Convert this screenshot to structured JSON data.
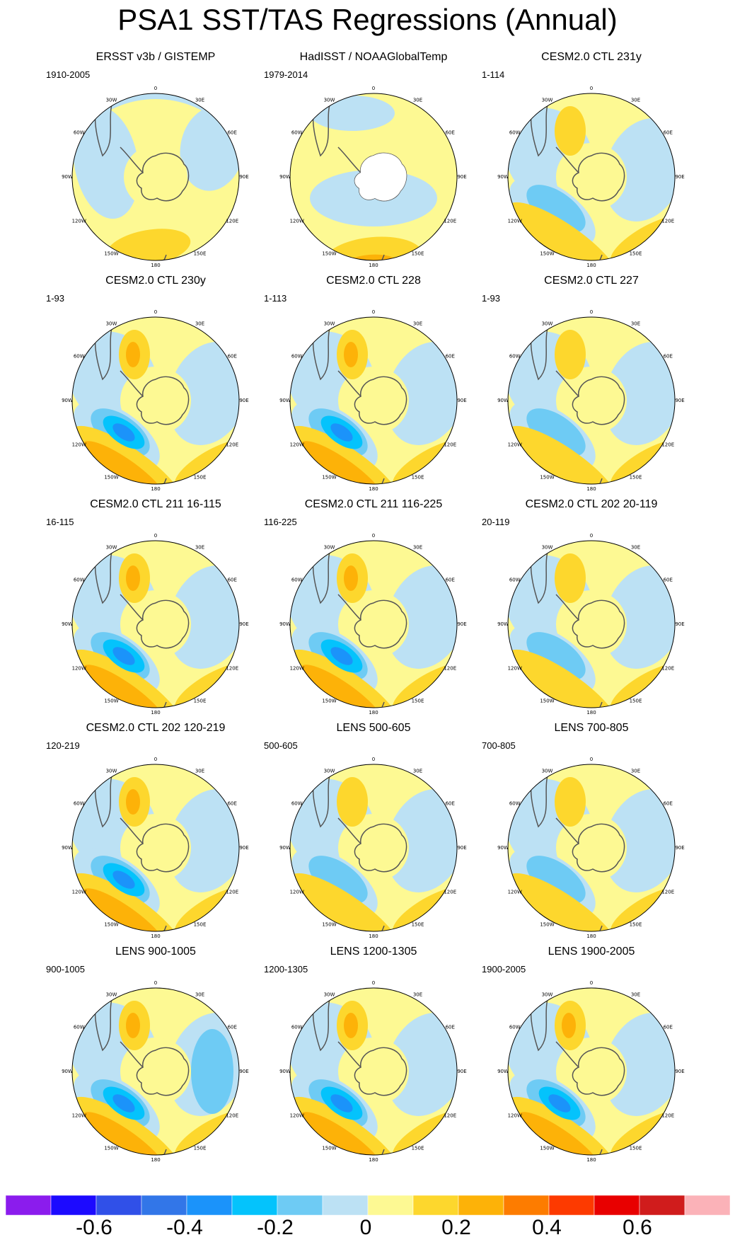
{
  "title": "PSA1 SST/TAS Regressions (Annual)",
  "lon_labels": [
    "0",
    "30E",
    "60E",
    "90E",
    "120E",
    "150E",
    "180",
    "150W",
    "120W",
    "90W",
    "60W",
    "30W"
  ],
  "colors": {
    "levels": [
      "#8b1ced",
      "#1c0aff",
      "#3050e8",
      "#3276e8",
      "#1b93fa",
      "#04c3fc",
      "#6ecbf4",
      "#bce1f4",
      "#fdf993",
      "#fdd72d",
      "#fdb208",
      "#fd7c00",
      "#fd3a00",
      "#e80000",
      "#d01c1c",
      "#fbb2b8"
    ]
  },
  "colorbar": {
    "labels": [
      "-0.6",
      "-0.4",
      "-0.2",
      "0",
      "0.2",
      "0.4",
      "0.6"
    ]
  },
  "panels": [
    {
      "title": "ERSST v3b / GISTEMP",
      "period": "1910-2005"
    },
    {
      "title": "HadISST / NOAAGlobalTemp",
      "period": "1979-2014"
    },
    {
      "title": "CESM2.0 CTL 231y",
      "period": "1-114"
    },
    {
      "title": "CESM2.0 CTL 230y",
      "period": "1-93"
    },
    {
      "title": "CESM2.0 CTL 228",
      "period": "1-113"
    },
    {
      "title": "CESM2.0 CTL 227",
      "period": "1-93"
    },
    {
      "title": "CESM2.0 CTL 211 16-115",
      "period": "16-115"
    },
    {
      "title": "CESM2.0 CTL 211 116-225",
      "period": "116-225"
    },
    {
      "title": "CESM2.0 CTL 202 20-119",
      "period": "20-119"
    },
    {
      "title": "CESM2.0 CTL 202 120-219",
      "period": "120-219"
    },
    {
      "title": "LENS 500-605",
      "period": "500-605"
    },
    {
      "title": "LENS 700-805",
      "period": "700-805"
    },
    {
      "title": "LENS 900-1005",
      "period": "900-1005"
    },
    {
      "title": "LENS 1200-1305",
      "period": "1200-1305"
    },
    {
      "title": "LENS 1900-2005",
      "period": "1900-2005"
    }
  ]
}
